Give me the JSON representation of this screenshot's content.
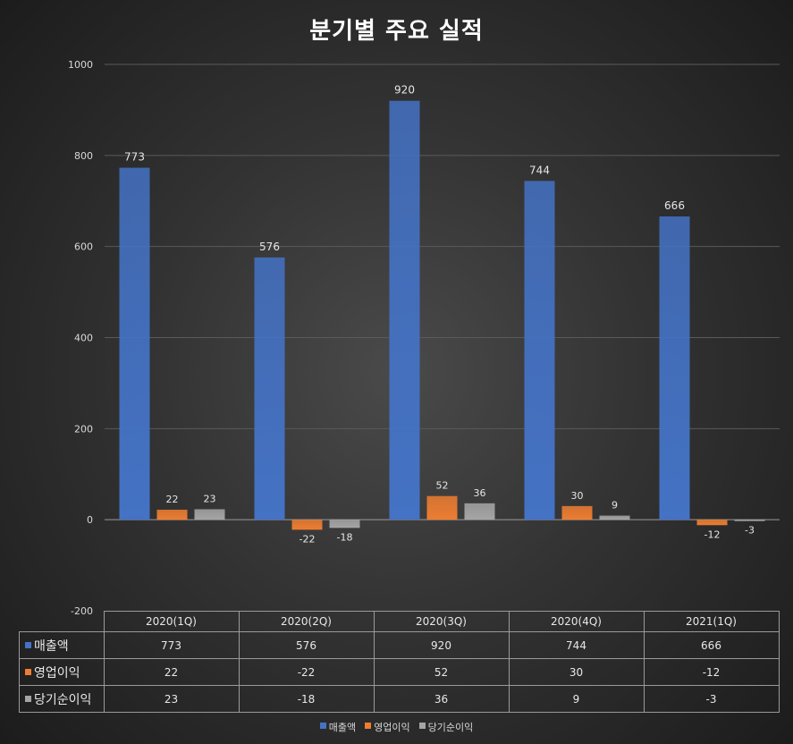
{
  "chart_data": {
    "type": "bar",
    "title": "분기별 주요 실적",
    "categories": [
      "2020(1Q)",
      "2020(2Q)",
      "2020(3Q)",
      "2020(4Q)",
      "2021(1Q)"
    ],
    "series": [
      {
        "name": "매출액",
        "values": [
          773,
          576,
          920,
          744,
          666
        ],
        "color": "#4472c4"
      },
      {
        "name": "영업이익",
        "values": [
          22,
          -22,
          52,
          30,
          -12
        ],
        "color": "#ed7d31"
      },
      {
        "name": "당기순이익",
        "values": [
          23,
          -18,
          36,
          9,
          -3
        ],
        "color": "#a5a5a5"
      }
    ],
    "ylim": [
      -200,
      1000
    ],
    "yticks": [
      1000,
      800,
      600,
      400,
      200,
      0,
      -200
    ],
    "grid": true,
    "legend_position": "bottom",
    "data_table": true
  }
}
